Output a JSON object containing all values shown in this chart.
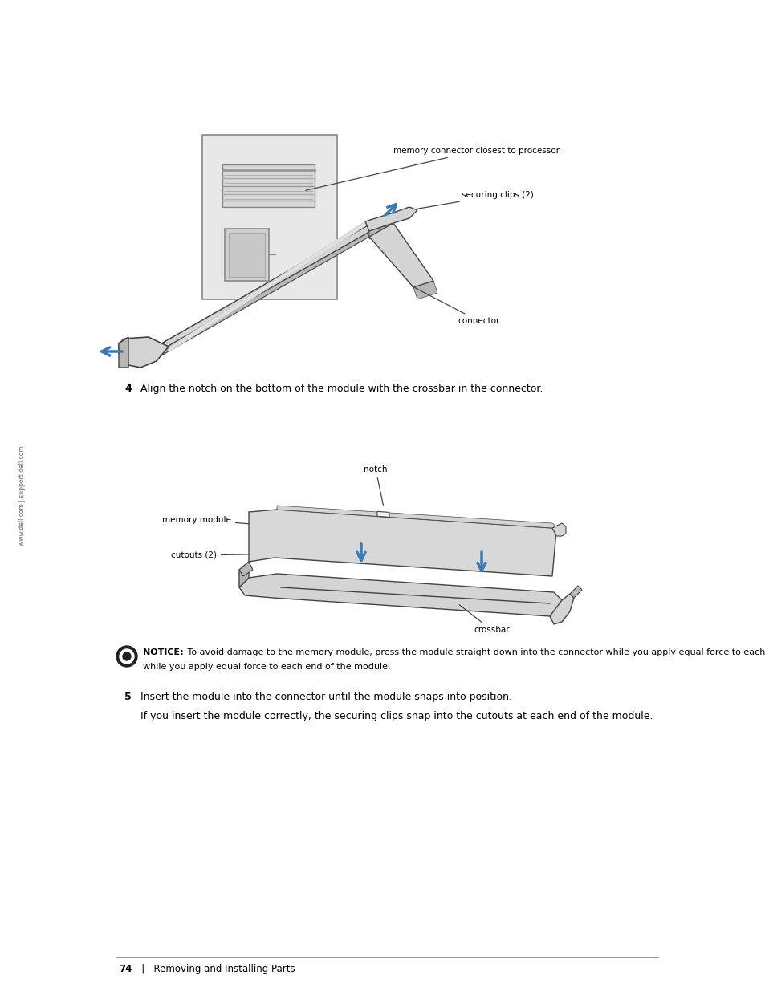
{
  "bg_color": "#ffffff",
  "page_width": 9.54,
  "page_height": 12.35,
  "dpi": 100,
  "sidebar_text": "www.dell.com | support.dell.com",
  "step4_num": "4",
  "step4_text": "Align the notch on the bottom of the module with the crossbar in the connector.",
  "step5_num": "5",
  "step5_text": "Insert the module into the connector until the module snaps into position.",
  "step5_para": "If you insert the module correctly, the securing clips snap into the cutouts at each end of the module.",
  "notice_bold": "NOTICE:",
  "notice_text": " To avoid damage to the memory module, press the module straight down into the connector while you apply equal force to each end of the module.",
  "footer_page": "74",
  "footer_sep": "   |   ",
  "footer_section": "Removing and Installing Parts",
  "label_mem_connector": "memory connector closest to processor",
  "label_securing_clips": "securing clips (2)",
  "label_connector": "connector",
  "label_notch": "notch",
  "label_memory_module": "memory module",
  "label_cutouts": "cutouts (2)",
  "label_crossbar": "crossbar",
  "blue": "#3a7ab5",
  "dark": "#222222",
  "gray_light": "#e8e8e8",
  "gray_mid": "#c0c0c0",
  "gray_dark": "#888888",
  "gray_fill": "#d4d4d4",
  "gray_fill2": "#b8b8b8",
  "text_color": "#000000",
  "sidebar_color": "#666666",
  "line_color": "#444444"
}
